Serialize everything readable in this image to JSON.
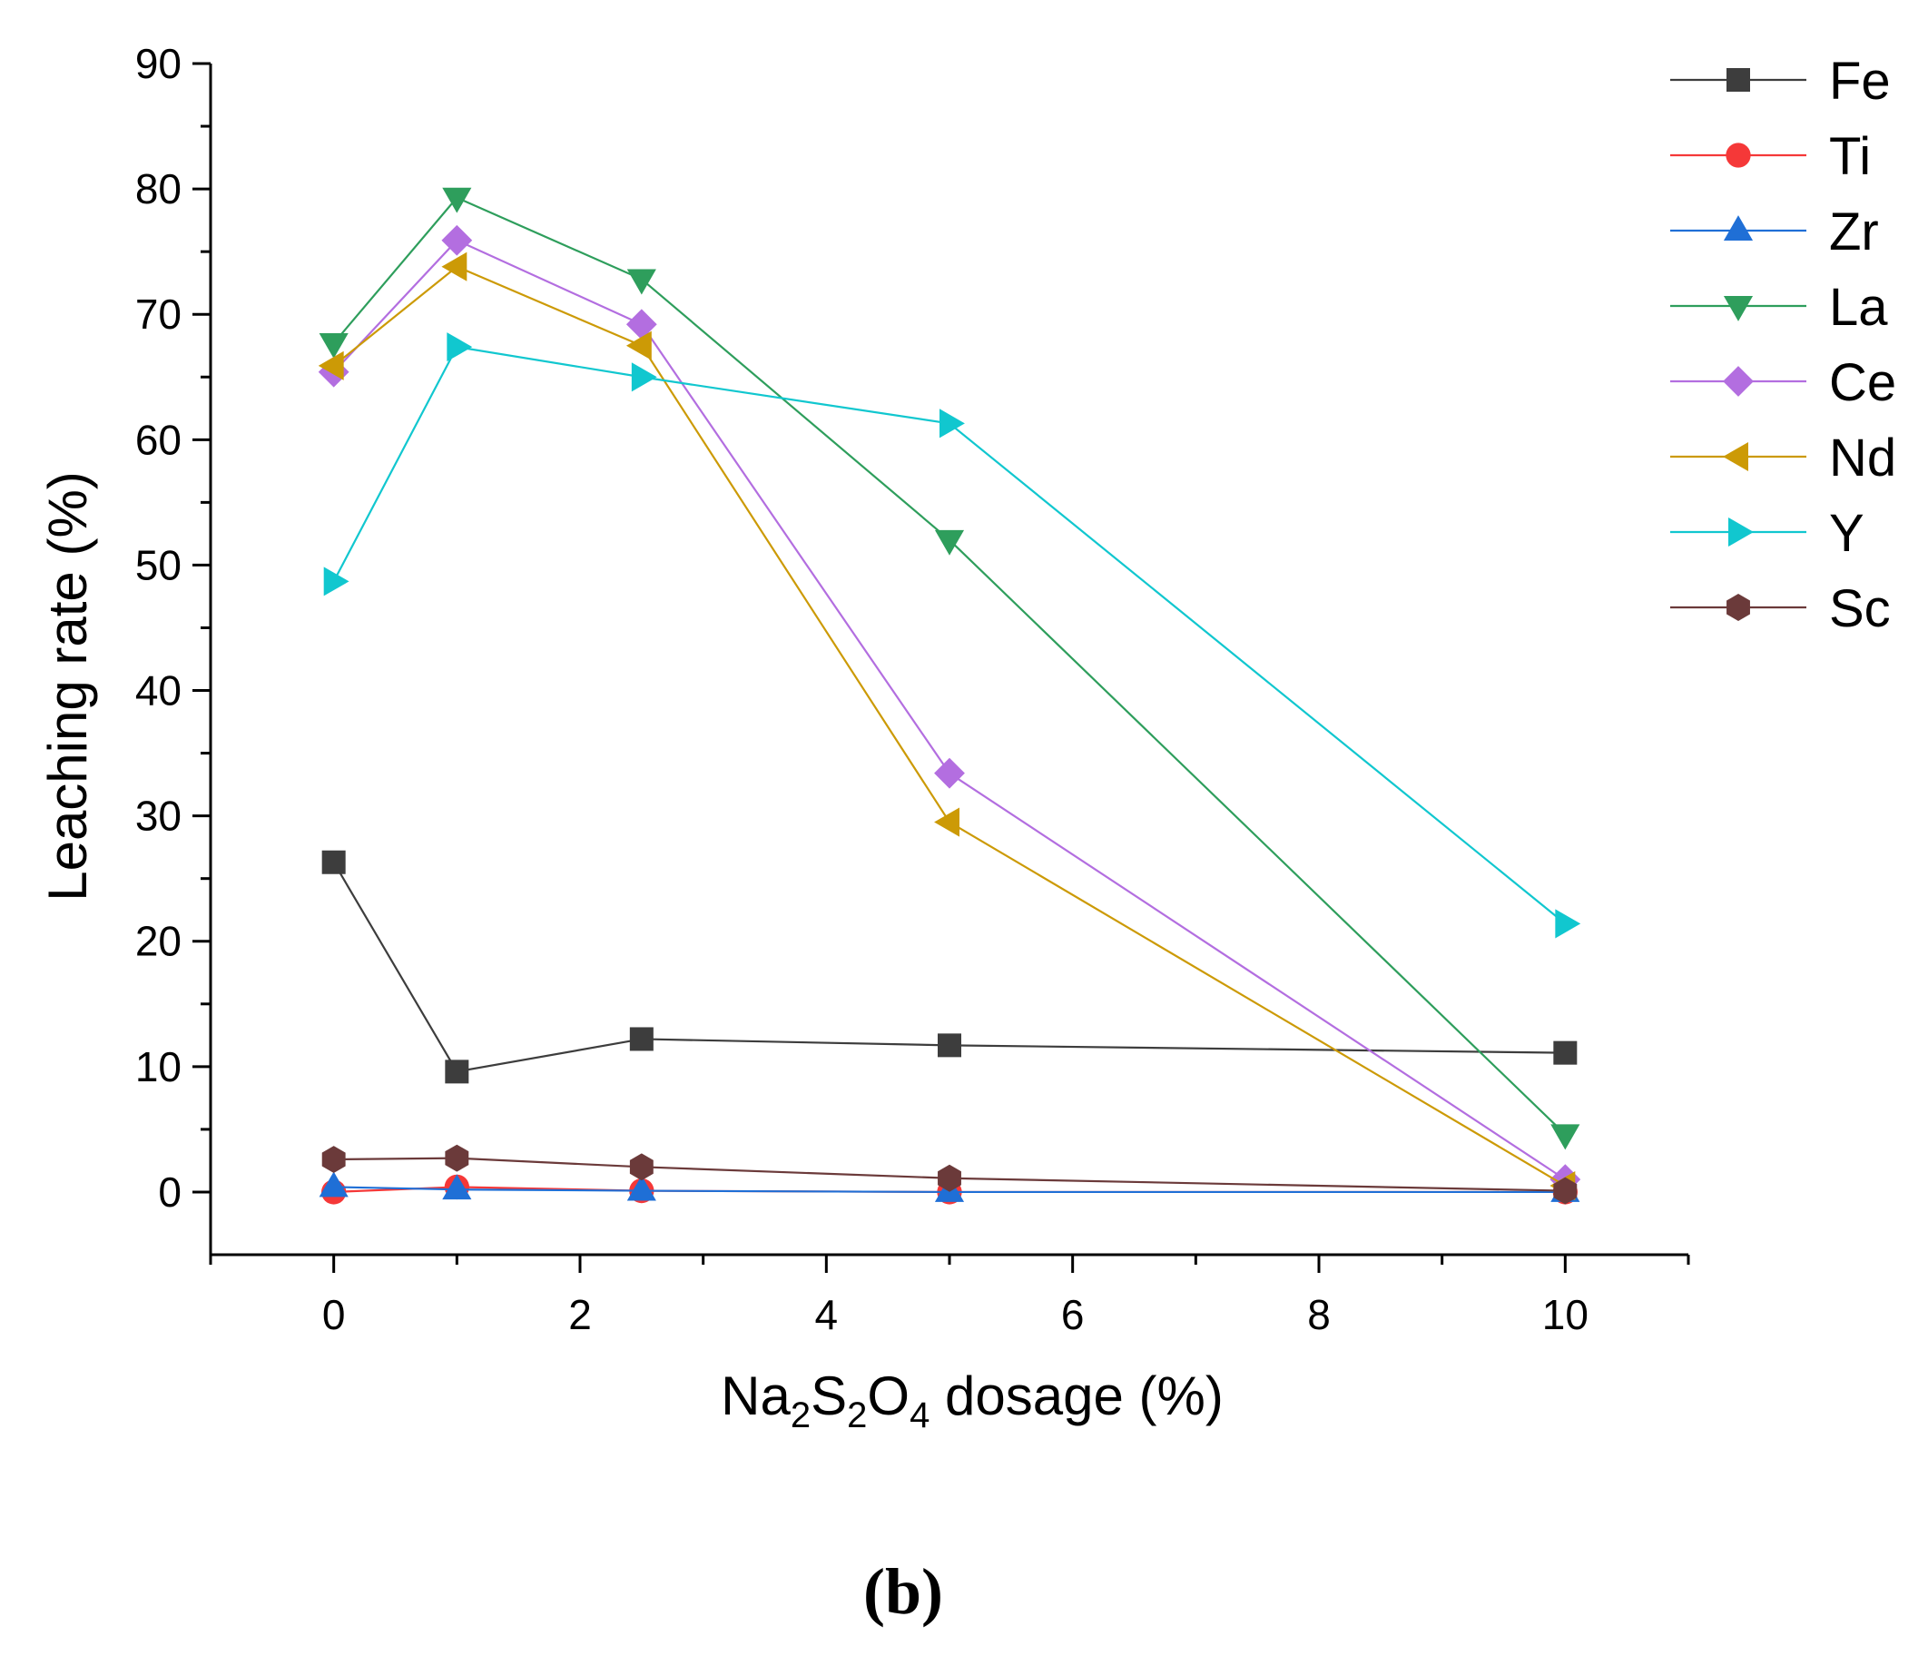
{
  "chart_data": {
    "type": "line",
    "xlabel_parts": [
      {
        "text": "Na",
        "sub": false
      },
      {
        "text": "2",
        "sub": true
      },
      {
        "text": "S",
        "sub": false
      },
      {
        "text": "2",
        "sub": true
      },
      {
        "text": "O",
        "sub": false
      },
      {
        "text": "4",
        "sub": true
      },
      {
        "text": " dosage (%)",
        "sub": false
      }
    ],
    "ylabel": "Leaching rate (%)",
    "xlim": [
      -1,
      11
    ],
    "ylim": [
      -5,
      90
    ],
    "x_ticks": [
      0,
      2,
      4,
      6,
      8,
      10
    ],
    "x_tick_labels": [
      "0",
      "2",
      "4",
      "6",
      "8",
      "10"
    ],
    "x_minor_ticks": [
      -1,
      1,
      3,
      5,
      7,
      9,
      11
    ],
    "y_ticks": [
      0,
      10,
      20,
      30,
      40,
      50,
      60,
      70,
      80,
      90
    ],
    "y_tick_labels": [
      "0",
      "10",
      "20",
      "30",
      "40",
      "50",
      "60",
      "70",
      "80",
      "90"
    ],
    "y_minor_ticks": [
      5,
      15,
      25,
      35,
      45,
      55,
      65,
      75,
      85
    ],
    "x": [
      0,
      1,
      2.5,
      5,
      10
    ],
    "series": [
      {
        "name": "Fe",
        "marker": "square",
        "color": "#3d3d3d",
        "values": [
          26.3,
          9.6,
          12.2,
          11.7,
          11.1
        ]
      },
      {
        "name": "Ti",
        "marker": "circle",
        "color": "#f53838",
        "values": [
          0.0,
          0.4,
          0.1,
          0.0,
          0.0
        ]
      },
      {
        "name": "Zr",
        "marker": "triangle-up",
        "color": "#1f6fd6",
        "values": [
          0.4,
          0.2,
          0.1,
          0.0,
          0.0
        ]
      },
      {
        "name": "La",
        "marker": "triangle-down",
        "color": "#2e9e5c",
        "values": [
          67.7,
          79.3,
          72.8,
          52.0,
          4.6
        ]
      },
      {
        "name": "Ce",
        "marker": "diamond",
        "color": "#b36ee0",
        "values": [
          65.4,
          75.9,
          69.2,
          33.4,
          1.0
        ]
      },
      {
        "name": "Nd",
        "marker": "triangle-left",
        "color": "#cc9a06",
        "values": [
          65.9,
          73.8,
          67.5,
          29.5,
          0.5
        ]
      },
      {
        "name": "Y",
        "marker": "triangle-right",
        "color": "#11c7cf",
        "values": [
          48.7,
          67.4,
          65.0,
          61.3,
          21.4
        ]
      },
      {
        "name": "Sc",
        "marker": "hexagon",
        "color": "#6b3a3a",
        "values": [
          2.6,
          2.7,
          2.0,
          1.1,
          0.1
        ]
      }
    ],
    "panel_label": "(b)",
    "legend_position": "top-right",
    "grid": false
  }
}
